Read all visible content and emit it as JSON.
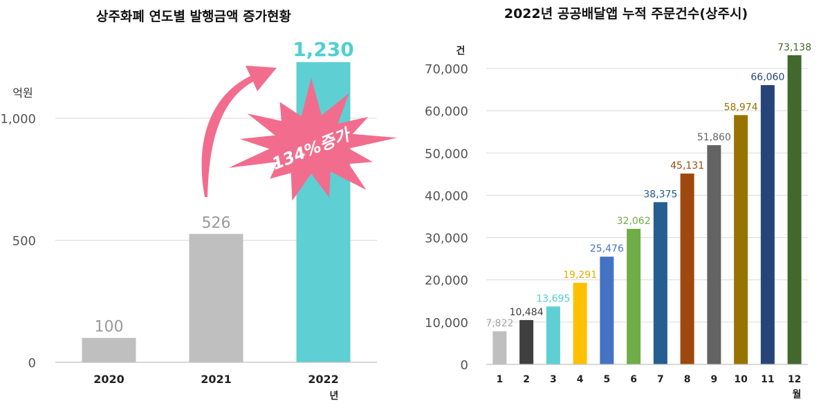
{
  "chart_data": [
    {
      "type": "bar",
      "title": "상주화폐 연도별 발행금액 증가현황",
      "ylabel": "억원",
      "xlabel": "년",
      "categories": [
        "2020",
        "2021",
        "2022"
      ],
      "values": [
        100,
        526,
        1230
      ],
      "data_labels": [
        "100",
        "526",
        "1,230"
      ],
      "yticks": [
        0,
        500,
        1000
      ],
      "ytick_labels": [
        "0",
        "500",
        "1,000"
      ],
      "ylim": [
        0,
        1300
      ],
      "grid": true,
      "highlight_index": 2,
      "colors": {
        "default": "#bfbfbf",
        "highlight": "#5ecfd3"
      },
      "annotation": {
        "text": "134%증가",
        "color": "#f26d8d"
      }
    },
    {
      "type": "bar",
      "title": "2022년 공공배달앱 누적 주문건수(상주시)",
      "ylabel": "건",
      "xlabel": "월",
      "categories": [
        "1",
        "2",
        "3",
        "4",
        "5",
        "6",
        "7",
        "8",
        "9",
        "10",
        "11",
        "12"
      ],
      "values": [
        7822,
        10484,
        13695,
        19291,
        25476,
        32062,
        38375,
        45131,
        51860,
        58974,
        66060,
        73138
      ],
      "data_labels": [
        "7,822",
        "10,484",
        "13,695",
        "19,291",
        "25,476",
        "32,062",
        "38,375",
        "45,131",
        "51,860",
        "58,974",
        "66,060",
        "73,138"
      ],
      "yticks": [
        0,
        10000,
        20000,
        30000,
        40000,
        50000,
        60000,
        70000
      ],
      "ytick_labels": [
        "0",
        "10,000",
        "20,000",
        "30,000",
        "40,000",
        "50,000",
        "60,000",
        "70,000"
      ],
      "ylim": [
        0,
        74500
      ],
      "grid": true,
      "colors": [
        "#bfbfbf",
        "#3f3f3f",
        "#5ecfd3",
        "#ffc000",
        "#4472c4",
        "#70ad47",
        "#255e91",
        "#9e480e",
        "#636363",
        "#997300",
        "#264478",
        "#43682b"
      ],
      "label_colors": [
        "#a5a5a5",
        "#3f3f3f",
        "#4ecfd3",
        "#e6ac00",
        "#4472c4",
        "#70ad47",
        "#255e91",
        "#9e480e",
        "#636363",
        "#997300",
        "#264478",
        "#43682b"
      ]
    }
  ]
}
